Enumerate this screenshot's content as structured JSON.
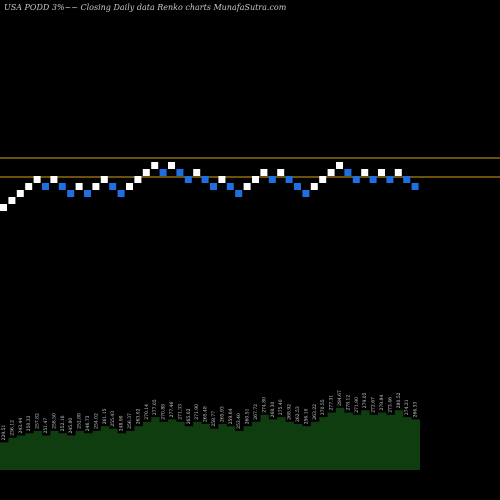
{
  "title": "USA PODD 3%~~ Closing Daily data  Renko  charts MunafaSutra.com",
  "chart_data": {
    "type": "renko",
    "title": "USA PODD 3%~~ Closing Daily data  Renko  charts MunafaSutra.com",
    "box_size_percent": 3,
    "reference_lines": [
      {
        "name": "upper",
        "color": "#d9a01a"
      },
      {
        "name": "lower",
        "color": "#d9a01a"
      }
    ],
    "colors": {
      "up": "#ffffff",
      "down": "#1e6fe0",
      "volume": "#0f3d0f",
      "labels": "#d8d8d8"
    },
    "bricks": [
      "up",
      "up",
      "up",
      "up",
      "up",
      "down",
      "up",
      "down",
      "down",
      "up",
      "down",
      "up",
      "up",
      "down",
      "down",
      "up",
      "up",
      "up",
      "up",
      "down",
      "up",
      "down",
      "down",
      "up",
      "down",
      "down",
      "up",
      "down",
      "down",
      "up",
      "up",
      "up",
      "down",
      "up",
      "down",
      "down",
      "down",
      "up",
      "up",
      "up",
      "up",
      "down",
      "down",
      "up",
      "down",
      "up",
      "down",
      "up",
      "down",
      "down"
    ],
    "brick_labels": [
      "229.51",
      "236.12",
      "243.44",
      "250.33",
      "257.82",
      "251.47",
      "258.50",
      "252.16",
      "245.80",
      "252.88",
      "246.73",
      "254.02",
      "261.15",
      "255.43",
      "248.90",
      "256.37",
      "263.02",
      "270.14",
      "277.05",
      "270.88",
      "277.46",
      "271.33",
      "265.02",
      "271.90",
      "265.48",
      "258.77",
      "265.93",
      "259.64",
      "253.40",
      "260.51",
      "267.72",
      "274.80",
      "268.30",
      "275.40",
      "268.92",
      "262.53",
      "256.10",
      "263.22",
      "270.55",
      "277.31",
      "284.67",
      "278.12",
      "271.90",
      "279.05",
      "272.67",
      "279.84",
      "273.46",
      "280.52",
      "274.21",
      "266.33"
    ],
    "volume": [
      12,
      14,
      15,
      16,
      17,
      15,
      17,
      16,
      15,
      17,
      16,
      17,
      19,
      18,
      16,
      17,
      19,
      21,
      23,
      21,
      22,
      21,
      19,
      21,
      20,
      18,
      20,
      19,
      17,
      19,
      21,
      24,
      22,
      23,
      21,
      20,
      19,
      21,
      23,
      25,
      27,
      25,
      24,
      26,
      24,
      25,
      24,
      26,
      23,
      22
    ]
  }
}
